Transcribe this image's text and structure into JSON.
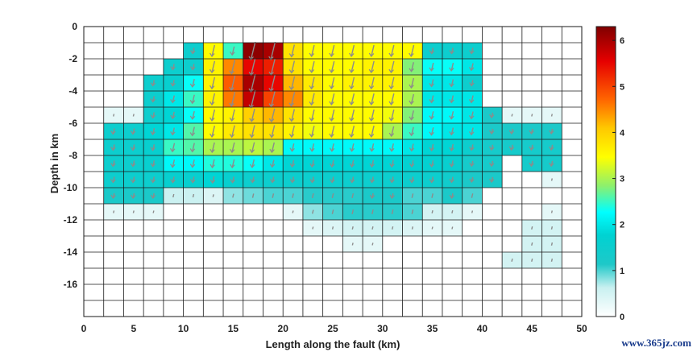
{
  "chart_data": {
    "type": "heatmap",
    "xlabel": "Length along the fault (km)",
    "ylabel": "Depth in km",
    "xlim": [
      0,
      50
    ],
    "ylim": [
      -18,
      0
    ],
    "x_ticks": [
      "0",
      "5",
      "10",
      "15",
      "20",
      "25",
      "30",
      "35",
      "40",
      "45",
      "50"
    ],
    "y_ticks": [
      "0",
      "-2",
      "-4",
      "-6",
      "-8",
      "-10",
      "-12",
      "-14",
      "-16"
    ],
    "colorbar": {
      "min": 0,
      "max": 6.3,
      "colormap": "jet",
      "ticks": [
        "0",
        "1",
        "2",
        "3",
        "4",
        "5",
        "6"
      ]
    },
    "grid": true,
    "cell_size_km": [
      2,
      1
    ],
    "slip_rows": [
      [
        0,
        0,
        0,
        0,
        0,
        0,
        0,
        0,
        0,
        0,
        0,
        0,
        0,
        0,
        0,
        0,
        0,
        0,
        0,
        0,
        0,
        0,
        0,
        0,
        0
      ],
      [
        0,
        0,
        0,
        0,
        0,
        1.5,
        3.5,
        2.5,
        6.2,
        6.0,
        3.8,
        3.5,
        3.5,
        3.5,
        3.5,
        3.5,
        3.5,
        1.5,
        1.5,
        1.5,
        0,
        0,
        0,
        0,
        0
      ],
      [
        0,
        0,
        0,
        0,
        1.5,
        1.5,
        3.6,
        4.5,
        5.5,
        5.3,
        3.8,
        3.5,
        3.5,
        3.5,
        3.6,
        3.6,
        2.8,
        2.3,
        2.3,
        2.0,
        0,
        0,
        0,
        0,
        0
      ],
      [
        0,
        0,
        0,
        1.5,
        1.6,
        2.3,
        3.6,
        4.8,
        6.0,
        5.5,
        4.2,
        3.7,
        3.5,
        3.6,
        3.6,
        3.6,
        3.0,
        2.0,
        2.0,
        1.5,
        0,
        0,
        0,
        0,
        0
      ],
      [
        0,
        0,
        0,
        1.5,
        2.0,
        2.5,
        3.6,
        4.6,
        5.8,
        5.0,
        4.5,
        3.7,
        3.5,
        3.5,
        3.5,
        3.5,
        3.0,
        2.0,
        2.0,
        2.0,
        0,
        0,
        0,
        0,
        0
      ],
      [
        0,
        0.3,
        0.3,
        1.5,
        1.8,
        2.3,
        3.5,
        3.6,
        4.0,
        4.2,
        3.8,
        3.5,
        3.5,
        3.5,
        3.5,
        3.4,
        2.8,
        2.2,
        2.2,
        2.0,
        1.2,
        0.3,
        0.3,
        0.3,
        0
      ],
      [
        0,
        1.5,
        1.5,
        1.8,
        2.0,
        2.6,
        3.5,
        3.7,
        3.8,
        3.8,
        3.6,
        3.4,
        3.5,
        3.5,
        3.5,
        3.0,
        2.5,
        2.2,
        2.0,
        2.0,
        1.2,
        1.2,
        1.2,
        1.2,
        0
      ],
      [
        0,
        1.5,
        1.5,
        1.6,
        2.5,
        2.6,
        3.0,
        3.0,
        3.1,
        3.0,
        2.2,
        2.2,
        2.2,
        2.2,
        2.2,
        2.2,
        2.0,
        1.8,
        1.8,
        1.5,
        1.3,
        1.3,
        1.3,
        1.3,
        0
      ],
      [
        0,
        1.5,
        1.5,
        1.6,
        2.2,
        2.2,
        2.4,
        2.4,
        2.3,
        2.0,
        1.8,
        1.8,
        1.8,
        1.8,
        1.8,
        1.8,
        1.7,
        1.7,
        1.6,
        1.3,
        1.3,
        0,
        1.3,
        1.3,
        0
      ],
      [
        0,
        1.5,
        1.5,
        1.5,
        1.6,
        1.6,
        1.8,
        1.6,
        1.5,
        1.5,
        1.5,
        1.5,
        1.5,
        1.5,
        1.5,
        1.5,
        1.5,
        1.5,
        1.4,
        1.2,
        1.2,
        0,
        0,
        0.3,
        0
      ],
      [
        0,
        1.2,
        1.2,
        1.2,
        0.6,
        0.6,
        0.4,
        0.8,
        0.9,
        1.0,
        1.0,
        1.1,
        1.1,
        1.1,
        1.2,
        1.2,
        1.0,
        1.0,
        1.2,
        1.0,
        0,
        0,
        0,
        0,
        0
      ],
      [
        0,
        0.3,
        0.3,
        0.3,
        0,
        0,
        0,
        0,
        0,
        0,
        0.3,
        0.8,
        1.0,
        1.1,
        1.1,
        1.1,
        1.0,
        0.5,
        0.5,
        0.3,
        0,
        0,
        0,
        0.3,
        0
      ],
      [
        0,
        0,
        0,
        0,
        0,
        0,
        0,
        0,
        0,
        0,
        0,
        0.3,
        0.4,
        0.5,
        0.5,
        0.5,
        0.4,
        0.3,
        0.3,
        0,
        0,
        0,
        0.5,
        0.5,
        0
      ],
      [
        0,
        0,
        0,
        0,
        0,
        0,
        0,
        0,
        0,
        0,
        0,
        0,
        0,
        0.3,
        0.3,
        0,
        0,
        0,
        0,
        0,
        0,
        0,
        0.5,
        0.5,
        0
      ],
      [
        0,
        0,
        0,
        0,
        0,
        0,
        0,
        0,
        0,
        0,
        0,
        0,
        0,
        0,
        0,
        0,
        0,
        0,
        0,
        0,
        0,
        0.5,
        0.5,
        0.5,
        0
      ],
      [
        0,
        0,
        0,
        0,
        0,
        0,
        0,
        0,
        0,
        0,
        0,
        0,
        0,
        0,
        0,
        0,
        0,
        0,
        0,
        0,
        0,
        0,
        0,
        0,
        0
      ],
      [
        0,
        0,
        0,
        0,
        0,
        0,
        0,
        0,
        0,
        0,
        0,
        0,
        0,
        0,
        0,
        0,
        0,
        0,
        0,
        0,
        0,
        0,
        0,
        0,
        0
      ],
      [
        0,
        0,
        0,
        0,
        0,
        0,
        0,
        0,
        0,
        0,
        0,
        0,
        0,
        0,
        0,
        0,
        0,
        0,
        0,
        0,
        0,
        0,
        0,
        0,
        0
      ]
    ]
  },
  "watermark": "www.365jz.com",
  "colors": {
    "arrow": "#8c8c8c",
    "grid": "#1a1a1a",
    "watermark": "#1a3c8c"
  }
}
